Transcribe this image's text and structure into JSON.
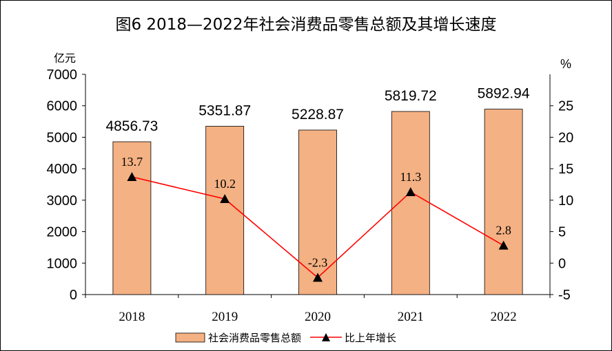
{
  "title": "图6   2018—2022年社会消费品零售总额及其增长速度",
  "left_unit": "亿元",
  "right_unit": "%",
  "colors": {
    "bar_fill": "#F4B183",
    "bar_stroke": "#000000",
    "line": "#FF0000",
    "marker": "#000000"
  },
  "chart_data": {
    "type": "bar",
    "categories": [
      "2018",
      "2019",
      "2020",
      "2021",
      "2022"
    ],
    "series": [
      {
        "name": "社会消费品零售总额",
        "type": "bar",
        "axis": "left",
        "values": [
          4856.73,
          5351.87,
          5228.87,
          5819.72,
          5892.94
        ],
        "labels": [
          "4856.73",
          "5351.87",
          "5228.87",
          "5819.72",
          "5892.94"
        ]
      },
      {
        "name": "比上年增长",
        "type": "line",
        "axis": "right",
        "values": [
          13.7,
          10.2,
          -2.3,
          11.3,
          2.8
        ],
        "labels": [
          "13.7",
          "10.2",
          "-2.3",
          "11.3",
          "2.8"
        ]
      }
    ],
    "left_axis": {
      "range": [
        0,
        7000
      ],
      "ticks": [
        "0",
        "1000",
        "2000",
        "3000",
        "4000",
        "5000",
        "6000",
        "7000"
      ]
    },
    "right_axis": {
      "range": [
        -5,
        30
      ],
      "ticks": [
        "-5",
        "0",
        "5",
        "10",
        "15",
        "20",
        "25"
      ]
    },
    "grid": false,
    "legend": "bottom-center"
  },
  "legend": {
    "bar_label": "社会消费品零售总额",
    "line_label": "比上年增长"
  }
}
